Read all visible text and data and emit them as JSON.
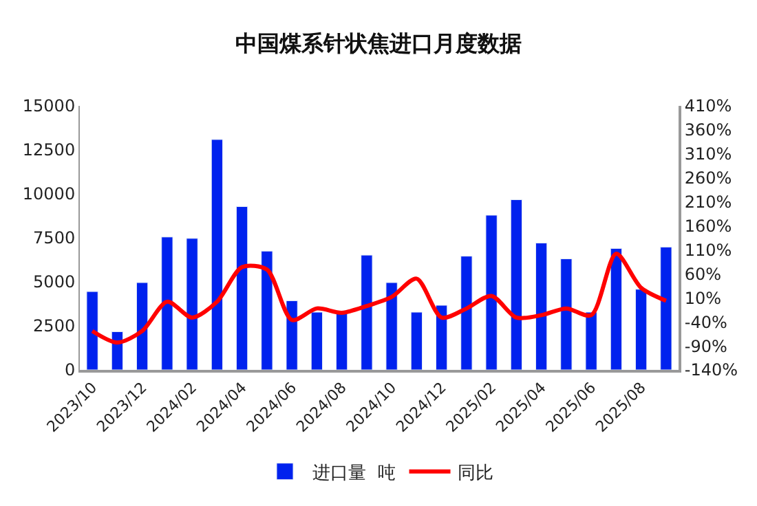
{
  "chart_data": {
    "type": "bar",
    "title": "中国煤系针状焦进口月度数据",
    "categories": [
      "2023/10",
      null,
      "2023/12",
      null,
      "2024/02",
      null,
      "2024/04",
      null,
      "2024/06",
      null,
      "2024/08",
      null,
      "2024/10",
      null,
      "2024/12",
      null,
      "2025/02",
      null,
      "2025/04",
      null,
      "2025/06",
      null,
      "2025/08",
      null
    ],
    "series": [
      {
        "name": "进口量  吨",
        "color": "#0022ee",
        "values": [
          4450,
          2170,
          4960,
          7550,
          7470,
          13090,
          9280,
          6750,
          3930,
          3280,
          3200,
          6520,
          4960,
          3280,
          3670,
          6460,
          8790,
          9670,
          7210,
          6310,
          3280,
          6900,
          4580,
          6980
        ]
      },
      {
        "name": "同比",
        "type": "line",
        "axis": "y2",
        "color": "#ff0000",
        "values": [
          -59,
          -83,
          -59,
          2,
          -31,
          2,
          74,
          69,
          -36,
          -12,
          -21,
          -7,
          12,
          50,
          -31,
          -12,
          14,
          -31,
          -26,
          -12,
          -26,
          102,
          31,
          4
        ]
      }
    ],
    "ylim": [
      0,
      15000
    ],
    "yticks": [
      0,
      2500,
      5000,
      7500,
      10000,
      12500,
      15000
    ],
    "y2lim": [
      -140,
      410
    ],
    "y2ticks": [
      {
        "value": -140,
        "label": "-140%"
      },
      {
        "value": -90,
        "label": "-90%"
      },
      {
        "value": -40,
        "label": "-40%"
      },
      {
        "value": 10,
        "label": "10%"
      },
      {
        "value": 60,
        "label": "60%"
      },
      {
        "value": 110,
        "label": "110%"
      },
      {
        "value": 160,
        "label": "160%"
      },
      {
        "value": 210,
        "label": "210%"
      },
      {
        "value": 260,
        "label": "260%"
      },
      {
        "value": 310,
        "label": "310%"
      },
      {
        "value": 360,
        "label": "360%"
      },
      {
        "value": 410,
        "label": "410%"
      }
    ],
    "grid": false,
    "legend": "bottom",
    "marker": "none",
    "line_style": "solid"
  }
}
